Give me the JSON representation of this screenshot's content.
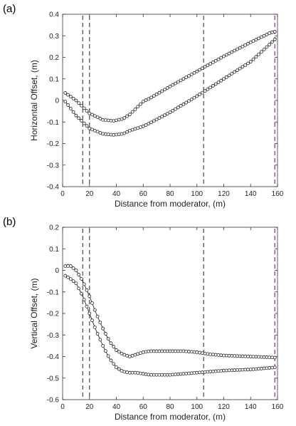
{
  "chart_data": [
    {
      "type": "scatter",
      "panel_label": "(a)",
      "xlabel": "Distance from moderator, (m)",
      "ylabel": "Horizontal Offset, (m)",
      "xlim": [
        0,
        160
      ],
      "ylim": [
        -0.4,
        0.4
      ],
      "xticks": [
        "0",
        "20",
        "40",
        "60",
        "80",
        "100",
        "120",
        "140",
        "160"
      ],
      "yticks": [
        "-0.4",
        "-0.3",
        "-0.2",
        "-0.1",
        "0",
        "0.1",
        "0.2",
        "0.3",
        "0.4"
      ],
      "series": [
        {
          "x": [
            2,
            10,
            20,
            30,
            38,
            45,
            50,
            55,
            60,
            65,
            80,
            100,
            120,
            140,
            155,
            159
          ],
          "y": [
            0.035,
            0.0,
            -0.06,
            -0.09,
            -0.095,
            -0.085,
            -0.065,
            -0.035,
            -0.005,
            0.01,
            0.065,
            0.135,
            0.205,
            0.27,
            0.315,
            0.32
          ]
        },
        {
          "x": [
            2,
            10,
            20,
            30,
            38,
            45,
            50,
            55,
            60,
            65,
            80,
            100,
            120,
            140,
            155,
            159
          ],
          "y": [
            -0.005,
            -0.07,
            -0.13,
            -0.155,
            -0.16,
            -0.155,
            -0.14,
            -0.13,
            -0.12,
            -0.105,
            -0.055,
            0.02,
            0.1,
            0.18,
            0.265,
            0.29
          ]
        }
      ],
      "vlines": [
        {
          "x": 15,
          "color": "#555555"
        },
        {
          "x": 20,
          "color": "#555555"
        },
        {
          "x": 105,
          "color": "#555555"
        },
        {
          "x": 158,
          "color": "#993399"
        }
      ],
      "grid": false
    },
    {
      "type": "scatter",
      "panel_label": "(b)",
      "xlabel": "Distance from moderator, (m)",
      "ylabel": "Vertical Offset, (m)",
      "xlim": [
        0,
        160
      ],
      "ylim": [
        -0.6,
        0.2
      ],
      "xticks": [
        "0",
        "20",
        "40",
        "60",
        "80",
        "100",
        "120",
        "140",
        "160"
      ],
      "yticks": [
        "-0.6",
        "-0.5",
        "-0.4",
        "-0.3",
        "-0.2",
        "-0.1",
        "0",
        "0.1",
        "0.2"
      ],
      "series": [
        {
          "x": [
            2,
            6,
            10,
            15,
            20,
            25,
            30,
            35,
            40,
            45,
            50,
            55,
            60,
            65,
            70,
            80,
            90,
            100,
            110,
            120,
            140,
            159
          ],
          "y": [
            0.02,
            0.02,
            0.0,
            -0.05,
            -0.12,
            -0.2,
            -0.27,
            -0.33,
            -0.37,
            -0.39,
            -0.4,
            -0.39,
            -0.38,
            -0.375,
            -0.375,
            -0.375,
            -0.375,
            -0.38,
            -0.39,
            -0.395,
            -0.4,
            -0.405
          ]
        },
        {
          "x": [
            2,
            6,
            10,
            15,
            20,
            25,
            30,
            35,
            40,
            45,
            50,
            55,
            60,
            65,
            70,
            80,
            90,
            100,
            110,
            120,
            140,
            159
          ],
          "y": [
            -0.025,
            -0.04,
            -0.06,
            -0.12,
            -0.2,
            -0.28,
            -0.35,
            -0.41,
            -0.45,
            -0.47,
            -0.475,
            -0.475,
            -0.48,
            -0.485,
            -0.485,
            -0.485,
            -0.48,
            -0.475,
            -0.47,
            -0.465,
            -0.46,
            -0.45
          ]
        }
      ],
      "vlines": [
        {
          "x": 15,
          "color": "#555555"
        },
        {
          "x": 20,
          "color": "#555555"
        },
        {
          "x": 105,
          "color": "#555555"
        },
        {
          "x": 158,
          "color": "#993399"
        }
      ],
      "grid": false
    }
  ]
}
